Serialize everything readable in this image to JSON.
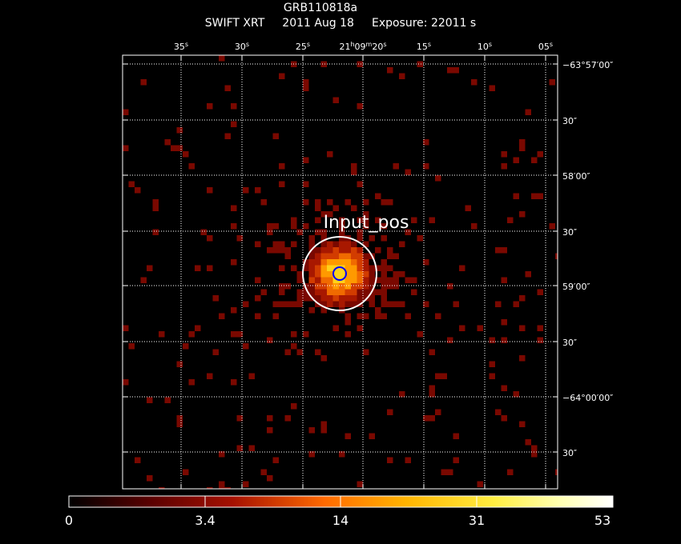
{
  "header": {
    "object_name": "GRB110818a",
    "telescope": "SWIFT XRT",
    "date": "2011 Aug 18",
    "exposure": "Exposure: 22011 s"
  },
  "axes": {
    "ra_ticks": [
      {
        "label": "35",
        "unit": "s"
      },
      {
        "label": "30",
        "unit": "s"
      },
      {
        "label": "25",
        "unit": "s"
      },
      {
        "label": "21",
        "unit": "h09m20s",
        "special": true
      },
      {
        "label": "15",
        "unit": "s"
      },
      {
        "label": "10",
        "unit": "s"
      },
      {
        "label": "05",
        "unit": "s"
      }
    ],
    "dec_ticks": [
      "−63°57′00″",
      "30″",
      "58′00″",
      "30″",
      "59′00″",
      "30″",
      "−64°00′00″",
      "30″"
    ]
  },
  "source_marker": {
    "label": "Input_pos",
    "outer_circle_color": "#ffffff",
    "inner_circle_color": "#0000ff"
  },
  "colorbar": {
    "labels": [
      "0",
      "3.4",
      "14",
      "31",
      "53"
    ],
    "stops": [
      "#000000",
      "#6a0000",
      "#b81c00",
      "#ff7a00",
      "#ffd200",
      "#ffffa0",
      "#ffffff"
    ]
  },
  "grid": {
    "color": "#ffffff",
    "style": "dotted"
  }
}
